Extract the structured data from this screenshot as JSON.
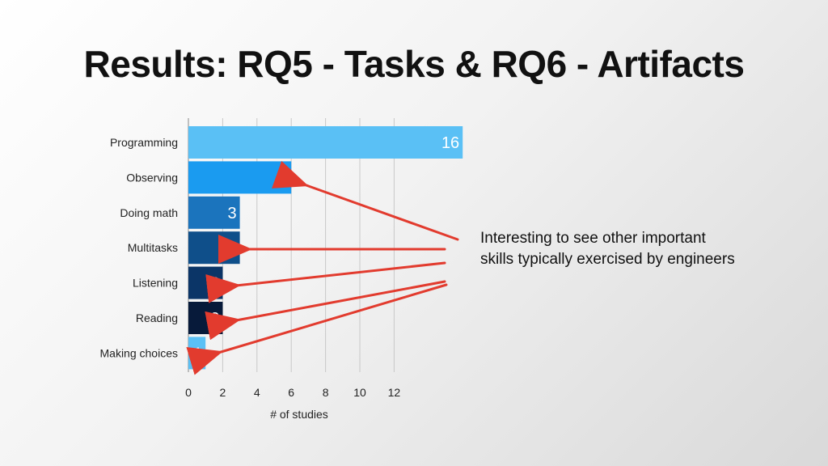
{
  "slide": {
    "title": "Results: RQ5 - Tasks & RQ6 - Artifacts",
    "note_lines": [
      "Interesting to see other important",
      "skills typically exercised by engineers"
    ]
  },
  "chart_data": {
    "type": "bar",
    "orientation": "horizontal",
    "categories": [
      "Programming",
      "Observing",
      "Doing math",
      "Multitasks",
      "Listening",
      "Reading",
      "Making choices"
    ],
    "values": [
      16,
      6,
      3,
      3,
      2,
      2,
      1
    ],
    "data_labels": [
      "16",
      "6",
      "3",
      "3",
      "2",
      "2",
      "1"
    ],
    "bar_colors": [
      "#5ac0f5",
      "#1a9bf0",
      "#1b74bd",
      "#0f4f8a",
      "#0b3567",
      "#071a3a",
      "#5ac0f5"
    ],
    "xticks": [
      0,
      2,
      4,
      6,
      8,
      10,
      12
    ],
    "xlim": [
      0,
      12
    ],
    "xlabel": "# of studies",
    "ylabel": "",
    "grid": true,
    "annotation_color": "#e23b2e"
  }
}
